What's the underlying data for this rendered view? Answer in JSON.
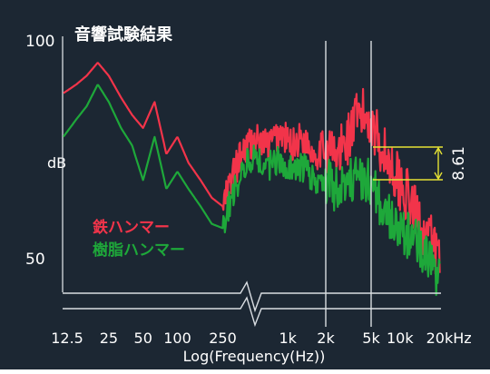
{
  "chart_data": {
    "type": "line",
    "title": "音響試験結果",
    "xlabel": "Log(Frequency(Hz))",
    "ylabel": "dB",
    "x_scale": "log",
    "x_range_hz": [
      10,
      20000
    ],
    "y_ticks": [
      {
        "value": 100,
        "label": "100"
      },
      {
        "value": 50,
        "label": "50"
      }
    ],
    "x_ticks": [
      {
        "value": 12.5,
        "label": "12.5"
      },
      {
        "value": 25,
        "label": "25"
      },
      {
        "value": 50,
        "label": "50"
      },
      {
        "value": 100,
        "label": "100"
      },
      {
        "value": 250,
        "label": "250"
      },
      {
        "value": 1000,
        "label": "1k"
      },
      {
        "value": 2000,
        "label": "2k"
      },
      {
        "value": 5000,
        "label": "5k"
      },
      {
        "value": 10000,
        "label": "10k"
      },
      {
        "value": 20000,
        "label": "20kHz"
      }
    ],
    "vertical_gridlines_hz": [
      2000,
      5000
    ],
    "axis_break": true,
    "series": [
      {
        "name": "鉄ハンマー",
        "color": "#f2344a",
        "smooth": [
          [
            10,
            88
          ],
          [
            13,
            90
          ],
          [
            16,
            92
          ],
          [
            20,
            95
          ],
          [
            25,
            92
          ],
          [
            32,
            87
          ],
          [
            40,
            83
          ],
          [
            50,
            80
          ],
          [
            63,
            86
          ],
          [
            80,
            74
          ],
          [
            100,
            78
          ],
          [
            125,
            72
          ],
          [
            160,
            68
          ],
          [
            200,
            64
          ],
          [
            250,
            62
          ],
          [
            315,
            70
          ],
          [
            400,
            76
          ],
          [
            500,
            77
          ],
          [
            630,
            76
          ],
          [
            800,
            79
          ],
          [
            1000,
            76
          ],
          [
            1250,
            78
          ],
          [
            1600,
            74
          ],
          [
            2000,
            76
          ],
          [
            2500,
            73
          ],
          [
            3150,
            78
          ],
          [
            4000,
            83
          ],
          [
            5000,
            82
          ],
          [
            6300,
            75
          ],
          [
            8000,
            70
          ],
          [
            10000,
            65
          ],
          [
            12500,
            60
          ],
          [
            16000,
            55
          ],
          [
            20000,
            50
          ]
        ],
        "noise": 4
      },
      {
        "name": "樹脂ハンマー",
        "color": "#1ea83a",
        "smooth": [
          [
            10,
            78
          ],
          [
            13,
            82
          ],
          [
            16,
            85
          ],
          [
            20,
            90
          ],
          [
            25,
            86
          ],
          [
            32,
            80
          ],
          [
            40,
            76
          ],
          [
            50,
            68
          ],
          [
            63,
            78
          ],
          [
            80,
            66
          ],
          [
            100,
            70
          ],
          [
            125,
            66
          ],
          [
            160,
            62
          ],
          [
            200,
            58
          ],
          [
            250,
            57
          ],
          [
            315,
            66
          ],
          [
            400,
            72
          ],
          [
            500,
            73
          ],
          [
            630,
            71
          ],
          [
            800,
            73
          ],
          [
            1000,
            70
          ],
          [
            1250,
            71
          ],
          [
            1600,
            68
          ],
          [
            2000,
            68
          ],
          [
            2500,
            66
          ],
          [
            3150,
            67
          ],
          [
            4000,
            69
          ],
          [
            5000,
            67
          ],
          [
            6300,
            62
          ],
          [
            8000,
            58
          ],
          [
            10000,
            56
          ],
          [
            12500,
            54
          ],
          [
            16000,
            50
          ],
          [
            20000,
            44
          ]
        ],
        "noise": 3.5
      }
    ],
    "annotation": {
      "value": "8.61",
      "unit": "dB",
      "color": "#e5e234",
      "at_hz": 5000
    }
  },
  "colors": {
    "background": "#1c2733",
    "foreground": "#ffffff",
    "axis": "#d9dde2"
  }
}
